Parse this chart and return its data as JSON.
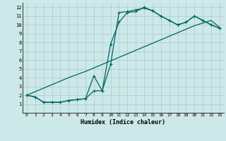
{
  "xlabel": "Humidex (Indice chaleur)",
  "xlim": [
    -0.5,
    23.5
  ],
  "ylim": [
    0,
    12.5
  ],
  "xticks": [
    0,
    1,
    2,
    3,
    4,
    5,
    6,
    7,
    8,
    9,
    10,
    11,
    12,
    13,
    14,
    15,
    16,
    17,
    18,
    19,
    20,
    21,
    22,
    23
  ],
  "yticks": [
    1,
    2,
    3,
    4,
    5,
    6,
    7,
    8,
    9,
    10,
    11,
    12
  ],
  "bg_color": "#cce8e8",
  "grid_color": "#aacccc",
  "line_color": "#006666",
  "line1_x": [
    0,
    1,
    2,
    3,
    4,
    5,
    6,
    7,
    8,
    9,
    10,
    11,
    12,
    13,
    14,
    15,
    16,
    17,
    18,
    19,
    20,
    21,
    22,
    23
  ],
  "line1_y": [
    2.0,
    2.4,
    2.8,
    3.2,
    3.6,
    4.0,
    4.35,
    4.7,
    5.1,
    5.5,
    5.9,
    6.3,
    6.7,
    7.1,
    7.5,
    7.9,
    8.3,
    8.7,
    9.1,
    9.5,
    9.9,
    10.2,
    10.5,
    9.7
  ],
  "line2_x": [
    0,
    1,
    2,
    3,
    4,
    5,
    6,
    7,
    8,
    9,
    10,
    11,
    12,
    13,
    14,
    15,
    16,
    17,
    18,
    19,
    20,
    21,
    22,
    23
  ],
  "line2_y": [
    2.0,
    1.8,
    1.2,
    1.2,
    1.2,
    1.4,
    1.5,
    1.6,
    2.5,
    2.5,
    5.5,
    11.4,
    11.5,
    11.7,
    11.9,
    11.6,
    11.0,
    10.5,
    10.0,
    10.3,
    11.0,
    10.5,
    10.0,
    9.6
  ],
  "line3_x": [
    0,
    1,
    2,
    3,
    4,
    5,
    6,
    7,
    8,
    9,
    10,
    11,
    12,
    13,
    14,
    15,
    16,
    17,
    18,
    19,
    20,
    21,
    22,
    23
  ],
  "line3_y": [
    2.0,
    1.8,
    1.2,
    1.2,
    1.2,
    1.4,
    1.5,
    1.6,
    4.2,
    2.5,
    7.8,
    10.3,
    11.4,
    11.5,
    12.0,
    11.6,
    11.0,
    10.5,
    10.0,
    10.3,
    11.0,
    10.5,
    10.0,
    9.6
  ]
}
